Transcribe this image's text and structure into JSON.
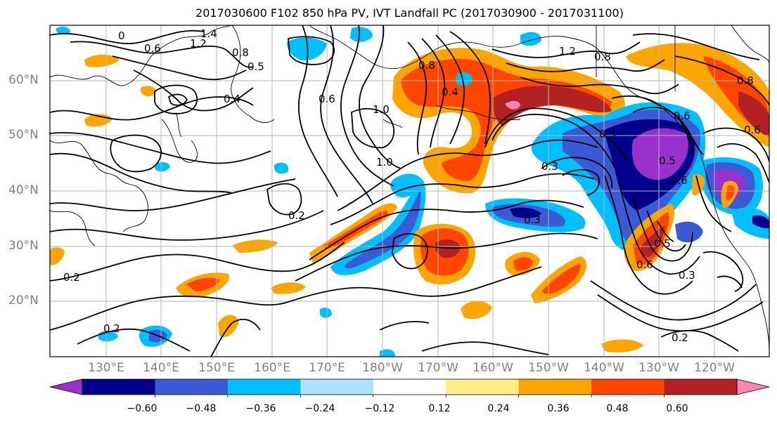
{
  "title": "2017030600 F102 850 hPa PV, IVT Landfall PC (2017030900 - 2017031100)",
  "lat_labels": [
    "60°N",
    "50°N",
    "40°N",
    "30°N",
    "20°N"
  ],
  "lon_labels": [
    "130°E",
    "140°E",
    "150°E",
    "160°E",
    "170°E",
    "180°W",
    "170°W",
    "160°W",
    "150°W",
    "140°W",
    "130°W",
    "120°W"
  ],
  "contour_labels": [
    "0",
    "0.6",
    "1.4",
    "1.2",
    "0.8",
    "0.5",
    "0.4",
    "0.6",
    "1.0",
    "0.2",
    "1.0",
    "0.2",
    "0.2",
    "0.8",
    "1.2",
    "0.8",
    "0.4",
    "0.3",
    "0.5",
    "0.6",
    "0.3",
    "0.3",
    "0.5",
    "0.6",
    "0.3",
    "0.2",
    "0.6",
    "0.8",
    "0.6"
  ],
  "colorbar": {
    "ticks": [
      "−0.60",
      "−0.48",
      "−0.36",
      "−0.24",
      "−0.12",
      "0.12",
      "0.24",
      "0.36",
      "0.48",
      "0.60"
    ],
    "colors": [
      "#9932cc",
      "#00008b",
      "#3b5bd6",
      "#00bfff",
      "#b0e2ff",
      "#ffffff",
      "#ffec8b",
      "#ffa500",
      "#ff4500",
      "#b22222",
      "#ff85b2"
    ]
  }
}
